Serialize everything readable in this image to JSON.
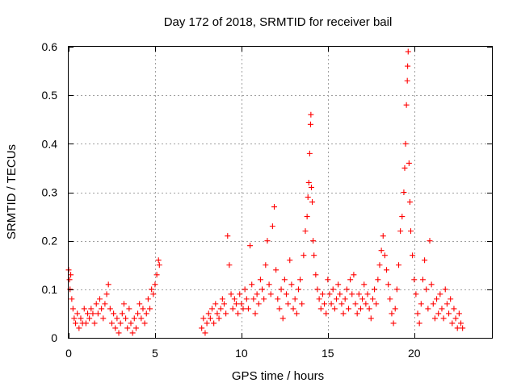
{
  "chart_data": {
    "type": "scatter",
    "title": "Day 172 of 2018, SRMTID for receiver bail",
    "xlabel": "GPS time / hours",
    "ylabel": "SRMTID / TECUs",
    "xlim": [
      0,
      24.5
    ],
    "ylim": [
      0,
      0.6
    ],
    "xticks": [
      0,
      5,
      10,
      15,
      20
    ],
    "xtick_labels": [
      "0",
      "5",
      "10",
      "15",
      "20"
    ],
    "yticks": [
      0,
      0.1,
      0.2,
      0.3,
      0.4,
      0.5,
      0.6
    ],
    "ytick_labels": [
      "0",
      "0.1",
      "0.2",
      "0.3",
      "0.4",
      "0.5",
      "0.6"
    ],
    "grid": true,
    "marker": "+",
    "color": "#ff0000",
    "series": [
      {
        "name": "SRMTID",
        "segments": [
          {
            "start": 0.0,
            "end": 5.3
          },
          {
            "start": 7.6,
            "end": 22.9
          }
        ],
        "points": [
          [
            0.0,
            0.14
          ],
          [
            0.05,
            0.12
          ],
          [
            0.08,
            0.1
          ],
          [
            0.12,
            0.13
          ],
          [
            0.18,
            0.08
          ],
          [
            0.25,
            0.06
          ],
          [
            0.32,
            0.04
          ],
          [
            0.4,
            0.03
          ],
          [
            0.5,
            0.05
          ],
          [
            0.6,
            0.02
          ],
          [
            0.7,
            0.04
          ],
          [
            0.8,
            0.03
          ],
          [
            0.9,
            0.06
          ],
          [
            1.0,
            0.03
          ],
          [
            1.1,
            0.05
          ],
          [
            1.2,
            0.04
          ],
          [
            1.3,
            0.06
          ],
          [
            1.4,
            0.05
          ],
          [
            1.5,
            0.03
          ],
          [
            1.6,
            0.07
          ],
          [
            1.7,
            0.05
          ],
          [
            1.8,
            0.08
          ],
          [
            1.9,
            0.06
          ],
          [
            2.0,
            0.04
          ],
          [
            2.1,
            0.07
          ],
          [
            2.2,
            0.09
          ],
          [
            2.3,
            0.11
          ],
          [
            2.4,
            0.06
          ],
          [
            2.5,
            0.03
          ],
          [
            2.6,
            0.05
          ],
          [
            2.7,
            0.02
          ],
          [
            2.8,
            0.04
          ],
          [
            2.9,
            0.01
          ],
          [
            3.0,
            0.03
          ],
          [
            3.1,
            0.05
          ],
          [
            3.2,
            0.07
          ],
          [
            3.3,
            0.04
          ],
          [
            3.4,
            0.02
          ],
          [
            3.5,
            0.06
          ],
          [
            3.6,
            0.03
          ],
          [
            3.7,
            0.01
          ],
          [
            3.8,
            0.04
          ],
          [
            3.9,
            0.02
          ],
          [
            4.0,
            0.05
          ],
          [
            4.1,
            0.07
          ],
          [
            4.2,
            0.04
          ],
          [
            4.3,
            0.06
          ],
          [
            4.4,
            0.03
          ],
          [
            4.5,
            0.05
          ],
          [
            4.6,
            0.08
          ],
          [
            4.7,
            0.06
          ],
          [
            4.8,
            0.1
          ],
          [
            4.9,
            0.09
          ],
          [
            5.0,
            0.11
          ],
          [
            5.1,
            0.13
          ],
          [
            5.2,
            0.16
          ],
          [
            5.25,
            0.15
          ],
          [
            7.7,
            0.02
          ],
          [
            7.8,
            0.04
          ],
          [
            7.9,
            0.01
          ],
          [
            8.0,
            0.03
          ],
          [
            8.1,
            0.05
          ],
          [
            8.2,
            0.04
          ],
          [
            8.3,
            0.06
          ],
          [
            8.4,
            0.03
          ],
          [
            8.5,
            0.07
          ],
          [
            8.6,
            0.05
          ],
          [
            8.7,
            0.04
          ],
          [
            8.8,
            0.06
          ],
          [
            8.9,
            0.08
          ],
          [
            9.0,
            0.07
          ],
          [
            9.1,
            0.05
          ],
          [
            9.2,
            0.21
          ],
          [
            9.3,
            0.15
          ],
          [
            9.4,
            0.09
          ],
          [
            9.5,
            0.06
          ],
          [
            9.6,
            0.08
          ],
          [
            9.7,
            0.07
          ],
          [
            9.8,
            0.05
          ],
          [
            9.9,
            0.09
          ],
          [
            10.0,
            0.07
          ],
          [
            10.1,
            0.06
          ],
          [
            10.2,
            0.1
          ],
          [
            10.3,
            0.08
          ],
          [
            10.4,
            0.06
          ],
          [
            10.5,
            0.19
          ],
          [
            10.6,
            0.11
          ],
          [
            10.7,
            0.08
          ],
          [
            10.8,
            0.05
          ],
          [
            10.9,
            0.09
          ],
          [
            11.0,
            0.07
          ],
          [
            11.1,
            0.12
          ],
          [
            11.2,
            0.1
          ],
          [
            11.3,
            0.08
          ],
          [
            11.4,
            0.15
          ],
          [
            11.5,
            0.2
          ],
          [
            11.6,
            0.11
          ],
          [
            11.7,
            0.09
          ],
          [
            11.8,
            0.23
          ],
          [
            11.9,
            0.27
          ],
          [
            12.0,
            0.14
          ],
          [
            12.1,
            0.08
          ],
          [
            12.2,
            0.06
          ],
          [
            12.3,
            0.1
          ],
          [
            12.4,
            0.04
          ],
          [
            12.5,
            0.12
          ],
          [
            12.6,
            0.09
          ],
          [
            12.7,
            0.07
          ],
          [
            12.8,
            0.16
          ],
          [
            12.9,
            0.11
          ],
          [
            13.0,
            0.06
          ],
          [
            13.1,
            0.08
          ],
          [
            13.2,
            0.05
          ],
          [
            13.3,
            0.1
          ],
          [
            13.4,
            0.12
          ],
          [
            13.5,
            0.07
          ],
          [
            13.6,
            0.17
          ],
          [
            13.7,
            0.22
          ],
          [
            13.8,
            0.25
          ],
          [
            13.85,
            0.29
          ],
          [
            13.9,
            0.32
          ],
          [
            13.95,
            0.38
          ],
          [
            14.0,
            0.44
          ],
          [
            14.02,
            0.46
          ],
          [
            14.05,
            0.31
          ],
          [
            14.1,
            0.28
          ],
          [
            14.15,
            0.2
          ],
          [
            14.2,
            0.17
          ],
          [
            14.3,
            0.13
          ],
          [
            14.4,
            0.1
          ],
          [
            14.5,
            0.08
          ],
          [
            14.6,
            0.06
          ],
          [
            14.7,
            0.09
          ],
          [
            14.8,
            0.07
          ],
          [
            14.9,
            0.05
          ],
          [
            15.0,
            0.12
          ],
          [
            15.1,
            0.09
          ],
          [
            15.2,
            0.07
          ],
          [
            15.3,
            0.1
          ],
          [
            15.4,
            0.06
          ],
          [
            15.5,
            0.08
          ],
          [
            15.6,
            0.11
          ],
          [
            15.7,
            0.09
          ],
          [
            15.8,
            0.07
          ],
          [
            15.9,
            0.05
          ],
          [
            16.0,
            0.08
          ],
          [
            16.1,
            0.1
          ],
          [
            16.2,
            0.06
          ],
          [
            16.3,
            0.12
          ],
          [
            16.4,
            0.09
          ],
          [
            16.5,
            0.13
          ],
          [
            16.6,
            0.07
          ],
          [
            16.7,
            0.05
          ],
          [
            16.8,
            0.09
          ],
          [
            16.9,
            0.06
          ],
          [
            17.0,
            0.08
          ],
          [
            17.1,
            0.11
          ],
          [
            17.2,
            0.07
          ],
          [
            17.3,
            0.09
          ],
          [
            17.4,
            0.06
          ],
          [
            17.5,
            0.04
          ],
          [
            17.6,
            0.08
          ],
          [
            17.7,
            0.1
          ],
          [
            17.8,
            0.07
          ],
          [
            17.9,
            0.12
          ],
          [
            18.0,
            0.15
          ],
          [
            18.1,
            0.18
          ],
          [
            18.2,
            0.21
          ],
          [
            18.3,
            0.17
          ],
          [
            18.4,
            0.14
          ],
          [
            18.5,
            0.11
          ],
          [
            18.6,
            0.08
          ],
          [
            18.7,
            0.05
          ],
          [
            18.8,
            0.03
          ],
          [
            18.9,
            0.06
          ],
          [
            19.0,
            0.1
          ],
          [
            19.1,
            0.15
          ],
          [
            19.2,
            0.22
          ],
          [
            19.3,
            0.25
          ],
          [
            19.4,
            0.3
          ],
          [
            19.45,
            0.35
          ],
          [
            19.5,
            0.4
          ],
          [
            19.55,
            0.48
          ],
          [
            19.6,
            0.53
          ],
          [
            19.62,
            0.56
          ],
          [
            19.65,
            0.59
          ],
          [
            19.7,
            0.36
          ],
          [
            19.75,
            0.28
          ],
          [
            19.8,
            0.22
          ],
          [
            19.9,
            0.17
          ],
          [
            20.0,
            0.12
          ],
          [
            20.1,
            0.09
          ],
          [
            20.2,
            0.05
          ],
          [
            20.3,
            0.03
          ],
          [
            20.4,
            0.07
          ],
          [
            20.5,
            0.12
          ],
          [
            20.6,
            0.16
          ],
          [
            20.7,
            0.1
          ],
          [
            20.8,
            0.06
          ],
          [
            20.9,
            0.2
          ],
          [
            21.0,
            0.11
          ],
          [
            21.1,
            0.07
          ],
          [
            21.2,
            0.04
          ],
          [
            21.3,
            0.08
          ],
          [
            21.4,
            0.05
          ],
          [
            21.5,
            0.09
          ],
          [
            21.6,
            0.06
          ],
          [
            21.7,
            0.04
          ],
          [
            21.8,
            0.1
          ],
          [
            21.9,
            0.07
          ],
          [
            22.0,
            0.05
          ],
          [
            22.1,
            0.08
          ],
          [
            22.2,
            0.03
          ],
          [
            22.3,
            0.06
          ],
          [
            22.4,
            0.04
          ],
          [
            22.5,
            0.02
          ],
          [
            22.6,
            0.05
          ],
          [
            22.7,
            0.03
          ],
          [
            22.8,
            0.02
          ]
        ]
      }
    ]
  }
}
